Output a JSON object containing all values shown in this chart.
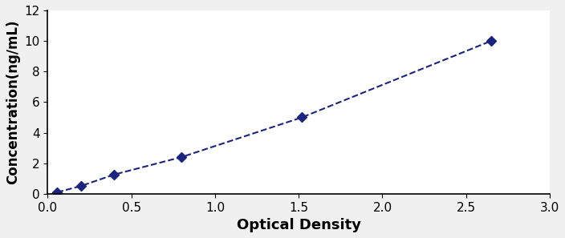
{
  "x": [
    0.057,
    0.197,
    0.395,
    0.8,
    1.52,
    2.65
  ],
  "y": [
    0.1,
    0.5,
    1.25,
    2.4,
    5.0,
    10.0
  ],
  "line_color": "#1a237e",
  "marker": "D",
  "marker_size": 6,
  "line_style": "--",
  "line_width": 1.5,
  "xlabel": "Optical Density",
  "ylabel": "Concentration(ng/mL)",
  "xlim": [
    0,
    3.0
  ],
  "ylim": [
    0,
    12
  ],
  "xticks": [
    0,
    0.5,
    1,
    1.5,
    2,
    2.5,
    3
  ],
  "yticks": [
    0,
    2,
    4,
    6,
    8,
    10,
    12
  ],
  "xlabel_fontsize": 13,
  "ylabel_fontsize": 12,
  "tick_fontsize": 11,
  "background_color": "#ffffff",
  "figure_facecolor": "#f0f0f0"
}
